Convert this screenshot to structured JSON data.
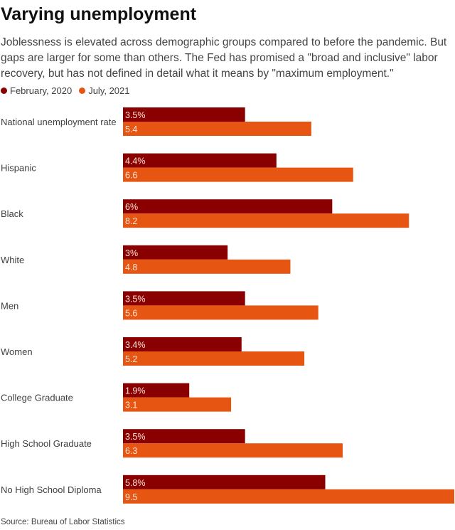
{
  "title": "Varying unemployment",
  "subtitle": "Joblessness is elevated across demographic groups compared to before the pandemic. But gaps are larger for some than others. The Fed has promised a \"broad and inclusive\" labor recovery, but has not defined in detail what it means by \"maximum employment.\"",
  "source": "Source: Bureau of Labor Statistics",
  "chart_data": {
    "type": "bar",
    "orientation": "horizontal",
    "title": "Varying unemployment",
    "xlabel": "",
    "ylabel": "",
    "xlim": [
      0,
      9.5
    ],
    "grid": false,
    "legend_position": "top-left",
    "categories": [
      "National unemployment rate",
      "Hispanic",
      "Black",
      "White",
      "Men",
      "Women",
      "College Graduate",
      "High School Graduate",
      "No High School Diploma"
    ],
    "series": [
      {
        "name": "February, 2020",
        "color": "#8a0000",
        "values": [
          3.5,
          4.4,
          6,
          3,
          3.5,
          3.4,
          1.9,
          3.5,
          5.8
        ],
        "labels": [
          "3.5%",
          "4.4%",
          "6%",
          "3%",
          "3.5%",
          "3.4%",
          "1.9%",
          "3.5%",
          "5.8%"
        ]
      },
      {
        "name": "July, 2021",
        "color": "#e65512",
        "values": [
          5.4,
          6.6,
          8.2,
          4.8,
          5.6,
          5.2,
          3.1,
          6.3,
          9.5
        ],
        "labels": [
          "5.4",
          "6.6",
          "8.2",
          "4.8",
          "5.6",
          "5.2",
          "3.1",
          "6.3",
          "9.5"
        ]
      }
    ]
  }
}
